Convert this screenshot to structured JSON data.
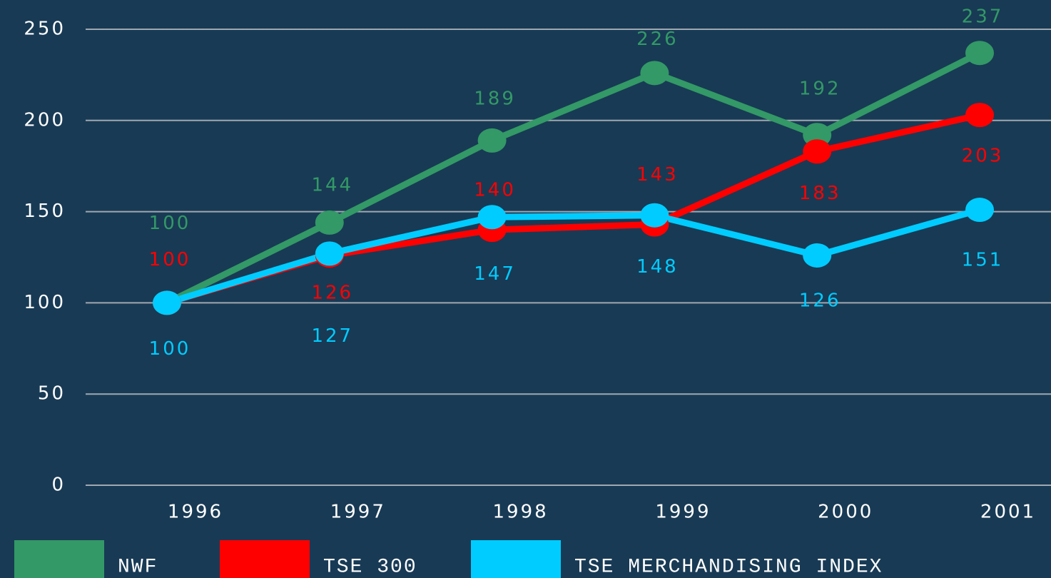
{
  "chart_data": {
    "type": "line",
    "categories": [
      "1996",
      "1997",
      "1998",
      "1999",
      "2000",
      "2001"
    ],
    "series": [
      {
        "name": "NWF",
        "color": "#339966",
        "values": [
          100,
          144,
          189,
          226,
          192,
          237
        ]
      },
      {
        "name": "TSE 300",
        "color": "#ff0000",
        "values": [
          100,
          126,
          140,
          143,
          183,
          203
        ]
      },
      {
        "name": "TSE MERCHANDISING INDEX",
        "color": "#00ccff",
        "values": [
          100,
          127,
          147,
          148,
          126,
          151
        ]
      }
    ],
    "ylim": [
      0,
      250
    ],
    "yticks": [
      0,
      50,
      100,
      150,
      200,
      250
    ],
    "grid": true,
    "legend": "bottom"
  }
}
